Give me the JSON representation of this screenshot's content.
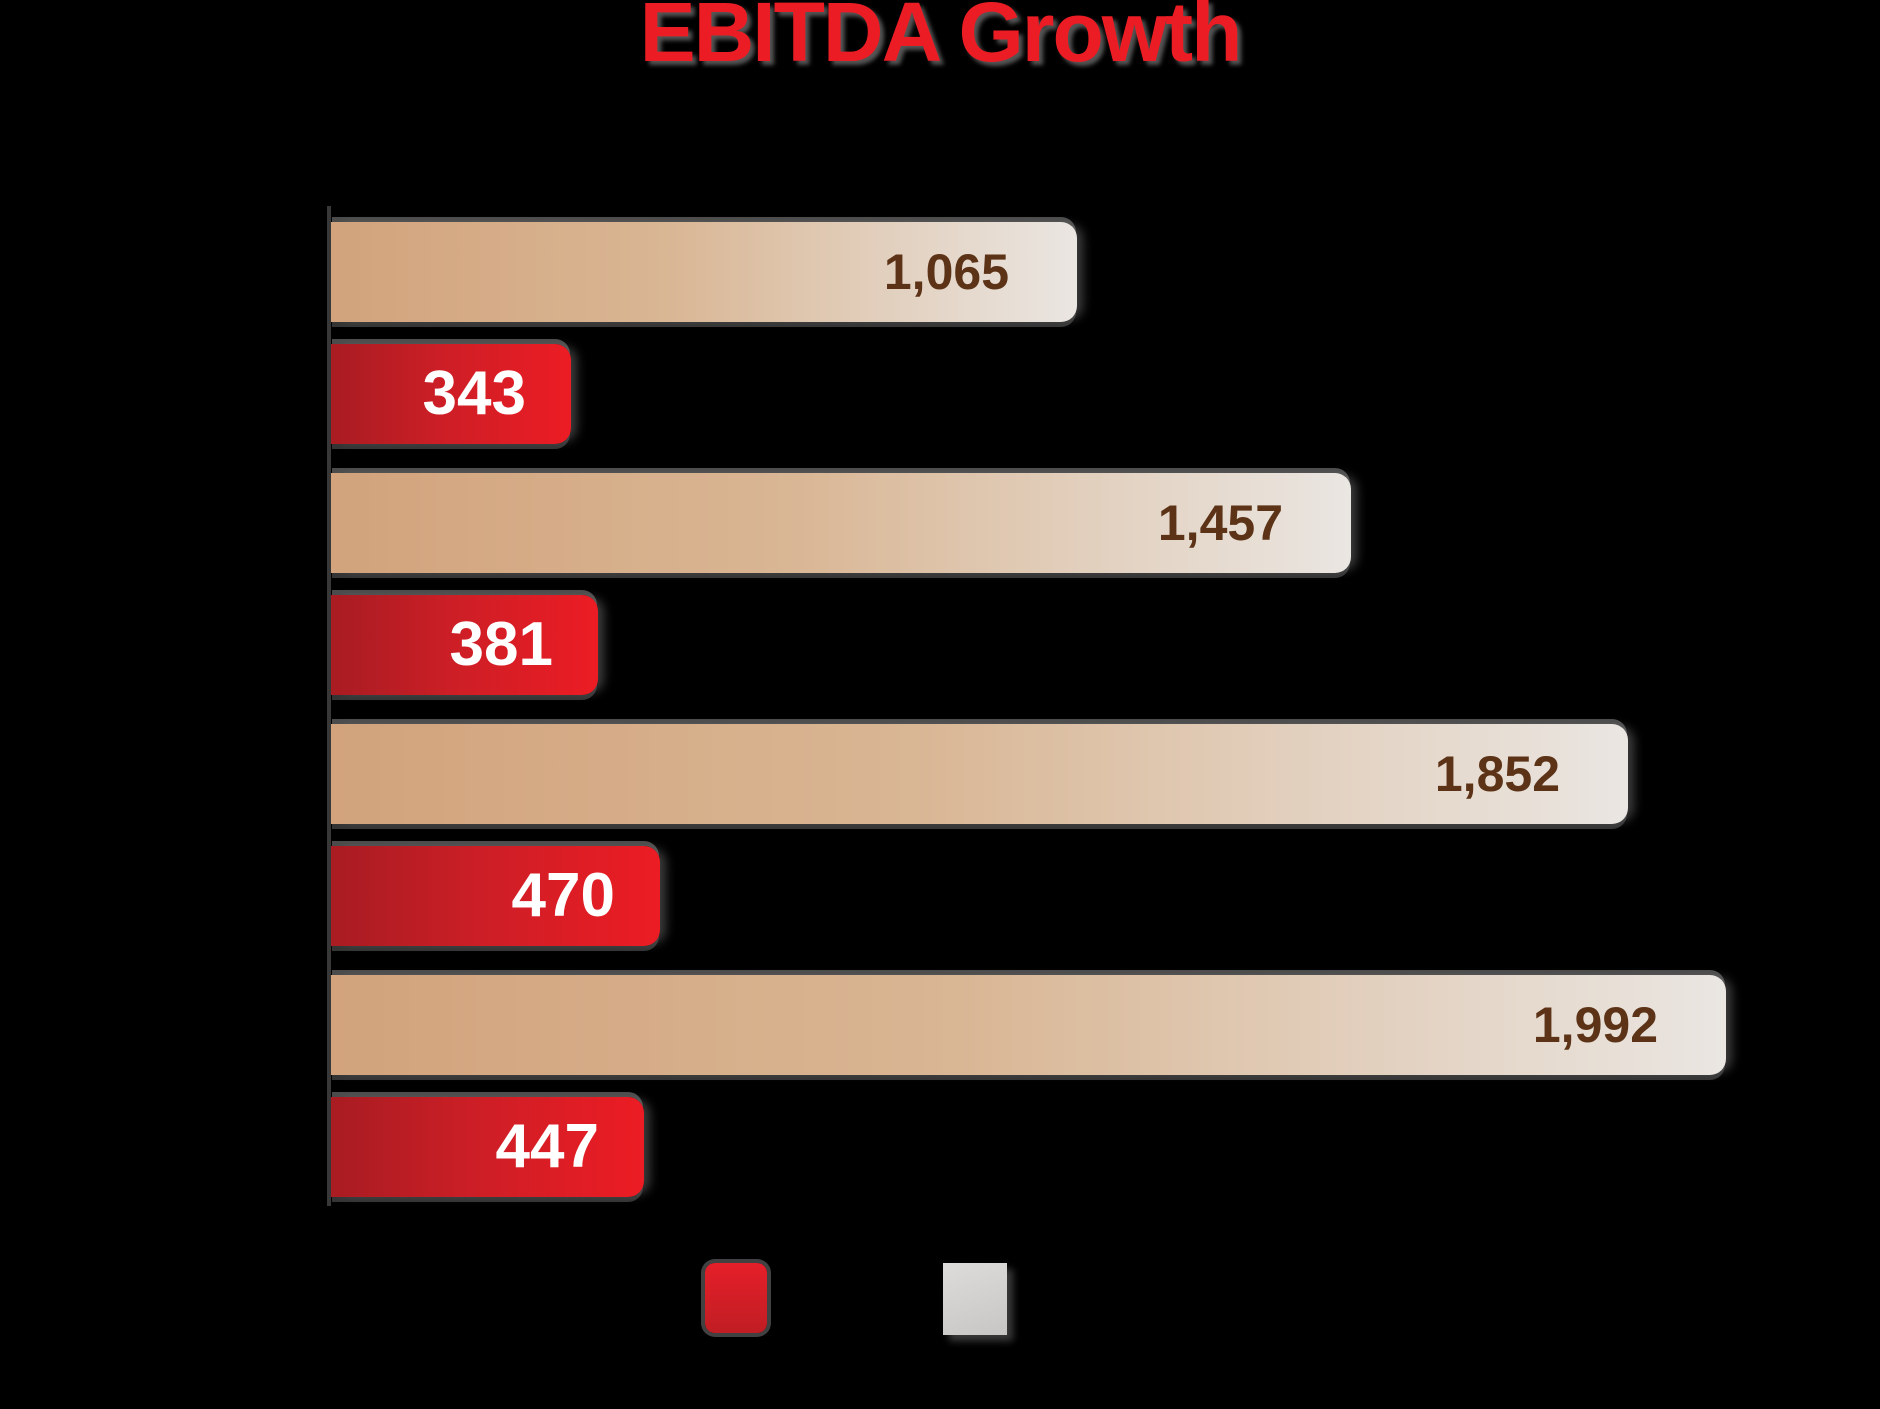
{
  "canvas": {
    "background_color": "#000000"
  },
  "title": {
    "text": "EBITDA Growth",
    "color": "#EC1C24"
  },
  "chart_data": {
    "type": "bar",
    "orientation": "horizontal",
    "title": "EBITDA Growth",
    "x_min": 0,
    "x_max": 1992,
    "gridlines": false,
    "category_axis_labels_visible": false,
    "legend_position": "bottom",
    "legend_text_visible": false,
    "groups_order_note": "each group shows neutral bar on top, red bar below",
    "series": [
      {
        "name": "neutral",
        "values": [
          1065,
          1457,
          1852,
          1992
        ],
        "labels": [
          "1,065",
          "1,457",
          "1,852",
          "1,992"
        ],
        "bar_gradient": [
          "#D2A37C",
          "#D9B694",
          "#EAE6E2"
        ],
        "label_color": "#5C3317",
        "legend_swatch_gradient": [
          "#DEDCDA",
          "#C8C6C4"
        ]
      },
      {
        "name": "red",
        "values": [
          343,
          381,
          470,
          447
        ],
        "labels": [
          "343",
          "381",
          "470",
          "447"
        ],
        "bar_gradient": [
          "#A81C22",
          "#CC1E26",
          "#EC1C24"
        ],
        "label_color": "#FFFFFF",
        "legend_swatch_gradient": [
          "#E51F29",
          "#C11D24"
        ]
      }
    ],
    "legend_order": [
      "red",
      "neutral"
    ]
  }
}
